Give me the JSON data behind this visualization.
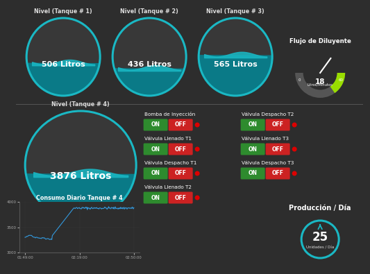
{
  "bg_color": "#2d2d2d",
  "panel_color": "#383838",
  "tank_border_color": "#1ab8c4",
  "tank_fill_color": "#0a7a87",
  "tank_wave_color": "#1ab8c4",
  "text_color": "#ffffff",
  "label_color": "#dddddd",
  "green_btn": "#2e8b2e",
  "red_btn": "#cc2222",
  "indicator_red": "#dd0000",
  "gauge_green": "#99dd00",
  "gauge_gray": "#555555",
  "gauge_needle": "#ffffff",
  "chart_line": "#3399dd",
  "chart_bg": "#2d2d2d",
  "chart_grid": "#444444",
  "teal_ring": "#1ab8c4",
  "tanks_top": [
    {
      "label": "Nivel (Tanque # 1)",
      "value": "506 Litros",
      "fill": 0.42
    },
    {
      "label": "Nivel (Tanque # 2)",
      "value": "436 Litros",
      "fill": 0.35
    },
    {
      "label": "Nivel (Tanque # 3)",
      "value": "565 Litros",
      "fill": 0.52
    }
  ],
  "tank4": {
    "label": "Nivel (Tanque # 4)",
    "value": "3876 Litros",
    "fill": 0.42
  },
  "gauge": {
    "label": "Flujo de Diluyente",
    "value": 18,
    "min": 0,
    "max": 60,
    "unit": "Litros/Minutos"
  },
  "controls_left": [
    "Bomba de Inyección",
    "Válvula Llenado T1",
    "Válvula Despacho T1",
    "Válvula Llenado T2"
  ],
  "controls_right": [
    "Válvula Despacho T2",
    "Válvula Llenado T3",
    "Válvula Despacho T3"
  ],
  "chart": {
    "title": "Consumo Diario Tanque # 4",
    "x_labels": [
      "01:49:00",
      "02:19:00",
      "02:50:00"
    ],
    "y_min": 3000,
    "y_max": 4000,
    "y_ticks": [
      3000,
      3500,
      4000
    ]
  },
  "production": {
    "label": "Producción / Día",
    "value": "25",
    "unit": "Unidades / Día"
  }
}
